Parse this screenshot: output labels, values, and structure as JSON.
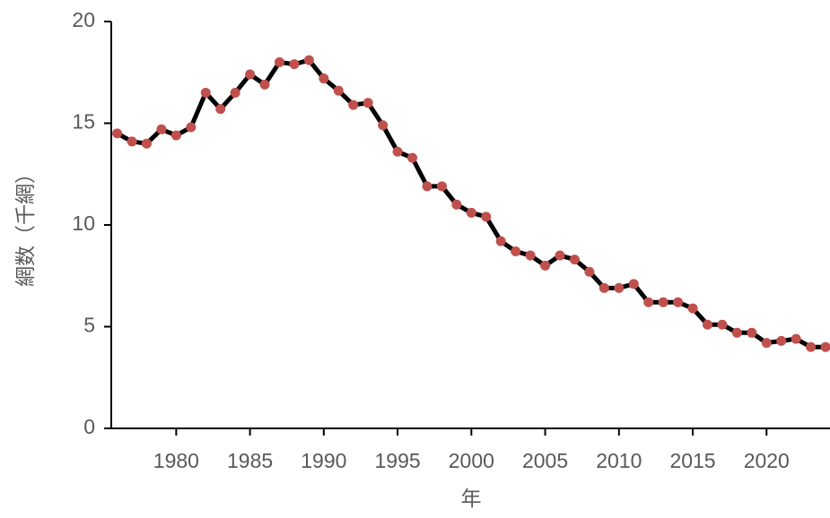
{
  "chart_data": {
    "type": "line",
    "x_label": "年",
    "y_label": "網数（千網）",
    "x": [
      1976,
      1977,
      1978,
      1979,
      1980,
      1981,
      1982,
      1983,
      1984,
      1985,
      1986,
      1987,
      1988,
      1989,
      1990,
      1991,
      1992,
      1993,
      1994,
      1995,
      1996,
      1997,
      1998,
      1999,
      2000,
      2001,
      2002,
      2003,
      2004,
      2005,
      2006,
      2007,
      2008,
      2009,
      2010,
      2011,
      2012,
      2013,
      2014,
      2015,
      2016,
      2017,
      2018,
      2019,
      2020,
      2021,
      2022,
      2023,
      2024
    ],
    "values": [
      14.5,
      14.1,
      14.0,
      14.7,
      14.4,
      14.8,
      16.5,
      15.7,
      16.5,
      17.4,
      16.9,
      18.0,
      17.9,
      18.1,
      17.2,
      16.6,
      15.9,
      16.0,
      14.9,
      13.6,
      13.3,
      11.9,
      11.9,
      11.0,
      10.6,
      10.4,
      9.2,
      8.7,
      8.5,
      8.0,
      8.5,
      8.3,
      7.7,
      6.9,
      6.9,
      7.1,
      6.2,
      6.2,
      6.2,
      5.9,
      5.1,
      5.1,
      4.7,
      4.7,
      4.2,
      4.3,
      4.4,
      4.0,
      4.0
    ],
    "color": "#000000",
    "marker_color": "#c0504d",
    "xlim": [
      1975.6,
      2024.3
    ],
    "xticks": [
      1980,
      1985,
      1990,
      1995,
      2000,
      2005,
      2010,
      2015,
      2020
    ],
    "ylim": [
      0,
      20
    ],
    "yticks": [
      0,
      5,
      10,
      15,
      20
    ]
  }
}
